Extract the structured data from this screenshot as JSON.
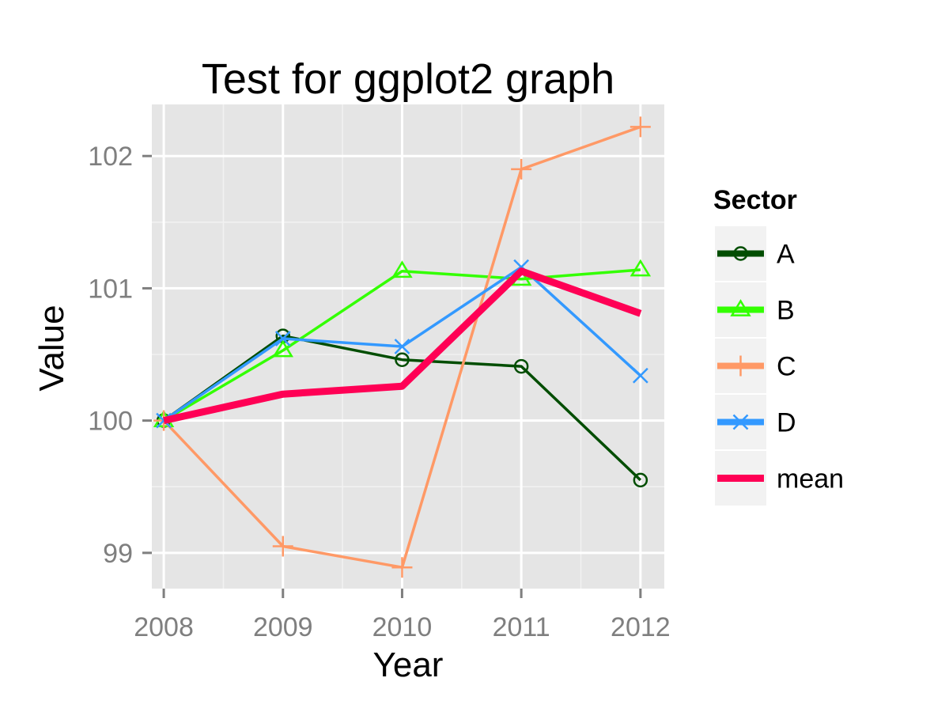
{
  "chart_data": {
    "type": "line",
    "title": "Test for ggplot2 graph",
    "xlabel": "Year",
    "ylabel": "Value",
    "x": [
      2008,
      2009,
      2010,
      2011,
      2012
    ],
    "x_tick_labels": [
      "2008",
      "2009",
      "2010",
      "2011",
      "2012"
    ],
    "y_ticks": [
      99,
      100,
      101,
      102
    ],
    "y_tick_labels": [
      "99",
      "100",
      "101",
      "102"
    ],
    "xlim": [
      2007.9,
      2012.2
    ],
    "ylim": [
      98.73,
      102.39
    ],
    "grid": true,
    "legend": {
      "title": "Sector",
      "placement": "right"
    },
    "series": [
      {
        "name": "A",
        "color": "#004d00",
        "marker": "circle",
        "values": [
          100.0,
          100.64,
          100.46,
          100.41,
          99.55
        ]
      },
      {
        "name": "B",
        "color": "#33ff00",
        "marker": "triangle",
        "values": [
          100.0,
          100.53,
          101.13,
          101.07,
          101.14
        ]
      },
      {
        "name": "C",
        "color": "#ff9966",
        "marker": "plus",
        "values": [
          100.0,
          99.05,
          98.89,
          101.9,
          102.22
        ]
      },
      {
        "name": "D",
        "color": "#3399ff",
        "marker": "cross",
        "values": [
          100.0,
          100.62,
          100.56,
          101.16,
          100.34
        ]
      },
      {
        "name": "mean",
        "color": "#ff0055",
        "marker": "none",
        "values": [
          100.0,
          100.2,
          100.26,
          101.13,
          100.81
        ]
      }
    ]
  }
}
